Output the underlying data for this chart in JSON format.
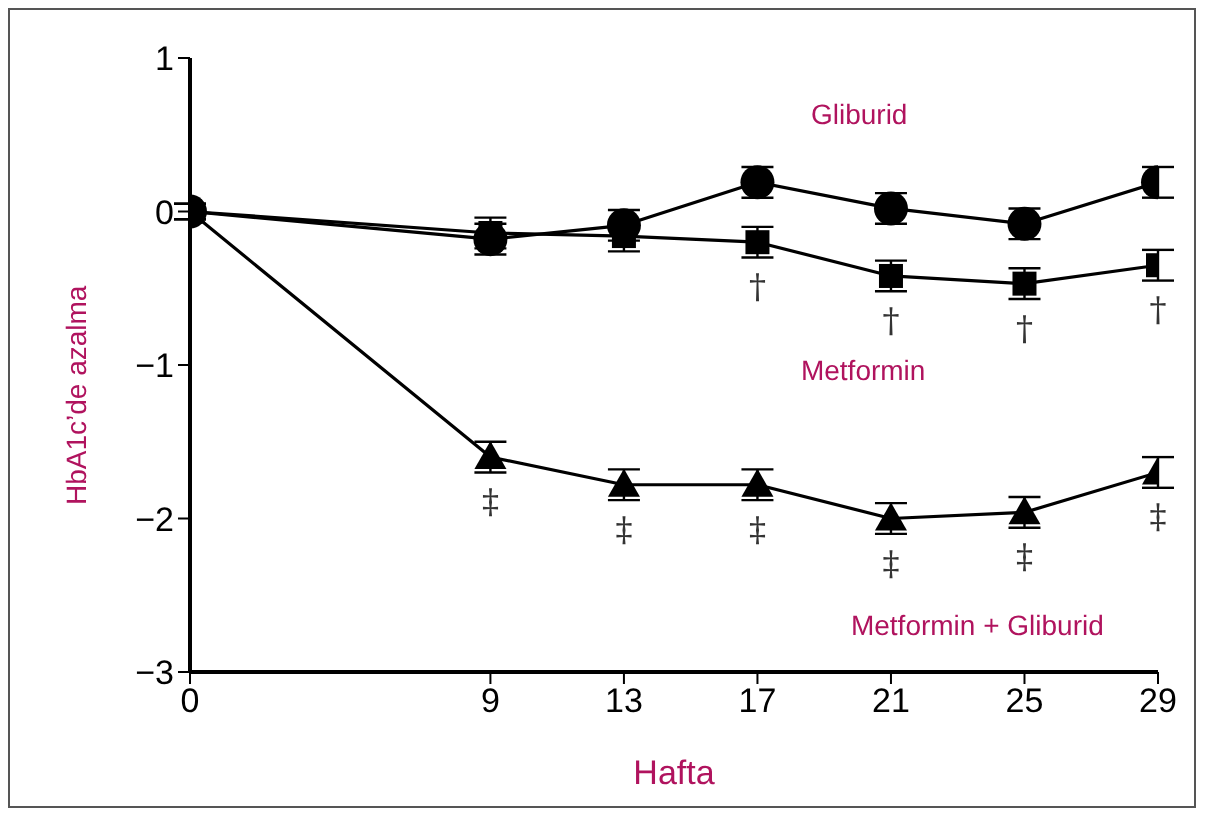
{
  "chart_data": {
    "type": "line",
    "xlabel": "Hafta",
    "ylabel": "HbA1c’de azalma",
    "x": [
      0,
      9,
      13,
      17,
      21,
      25,
      29
    ],
    "xlim": [
      0,
      29
    ],
    "xticks": [
      0,
      9,
      13,
      17,
      21,
      25,
      29
    ],
    "ylim": [
      -3,
      1
    ],
    "yticks": [
      -3,
      -2,
      -1,
      0,
      1
    ],
    "grid": false,
    "legend": false,
    "series": [
      {
        "name": "Gliburid",
        "color": "#000000",
        "marker": "circle",
        "values": [
          0,
          -0.18,
          -0.09,
          0.19,
          0.02,
          -0.08,
          0.19
        ],
        "errors": [
          0.05,
          0.1,
          0.1,
          0.1,
          0.1,
          0.1,
          0.1
        ]
      },
      {
        "name": "Metformin",
        "color": "#000000",
        "marker": "square",
        "values": [
          0,
          -0.14,
          -0.16,
          -0.2,
          -0.42,
          -0.47,
          -0.35
        ],
        "errors": [
          0.05,
          0.1,
          0.1,
          0.1,
          0.1,
          0.1,
          0.1
        ]
      },
      {
        "name": "Metformin + Gliburid",
        "color": "#000000",
        "marker": "triangle",
        "values": [
          0,
          -1.6,
          -1.78,
          -1.78,
          -2.0,
          -1.96,
          -1.7
        ],
        "errors": [
          0.05,
          0.1,
          0.1,
          0.1,
          0.1,
          0.1,
          0.1
        ]
      }
    ],
    "annotations": [
      {
        "text": "†",
        "x": 17,
        "y": -0.2
      },
      {
        "text": "†",
        "x": 21,
        "y": -0.42
      },
      {
        "text": "†",
        "x": 25,
        "y": -0.47
      },
      {
        "text": "†",
        "x": 29,
        "y": -0.35
      },
      {
        "text": "‡",
        "x": 9,
        "y": -1.6
      },
      {
        "text": "‡",
        "x": 13,
        "y": -1.78
      },
      {
        "text": "‡",
        "x": 17,
        "y": -1.78
      },
      {
        "text": "‡",
        "x": 21,
        "y": -2.0
      },
      {
        "text": "‡",
        "x": 25,
        "y": -1.96
      },
      {
        "text": "‡",
        "x": 29,
        "y": -1.7
      }
    ]
  }
}
